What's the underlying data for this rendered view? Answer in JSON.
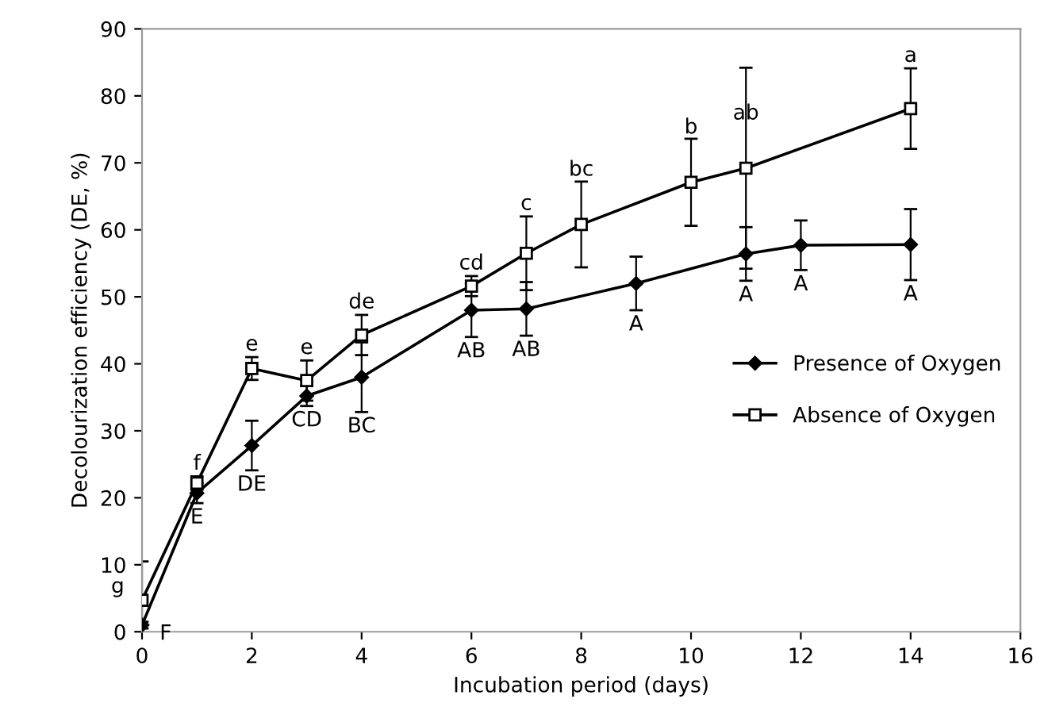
{
  "chart_data": {
    "type": "line",
    "xlabel": "Incubation period (days)",
    "ylabel": "Decolourization efficiency (DE, %)",
    "xlim": [
      0,
      16
    ],
    "xticks": [
      0,
      2,
      4,
      6,
      8,
      10,
      12,
      14,
      16
    ],
    "ylim": [
      0,
      90
    ],
    "yticks": [
      0,
      10,
      20,
      30,
      40,
      50,
      60,
      70,
      80,
      90
    ],
    "grid": false,
    "legend": "right",
    "line_style": "solid",
    "series": [
      {
        "name": "Presence of Oxygen",
        "color": "#000000",
        "marker": "diamond",
        "x": [
          0,
          1,
          2,
          3,
          4,
          6,
          7,
          9,
          11,
          12,
          14
        ],
        "values": [
          1,
          20.7,
          27.8,
          35.2,
          38,
          48,
          48.2,
          52,
          56.4,
          57.7,
          57.8
        ],
        "errors": [
          0.5,
          1.5,
          3.7,
          1.5,
          5.2,
          4,
          4,
          4,
          4,
          3.7,
          5.3
        ]
      },
      {
        "name": "Absence of Oxygen",
        "color": "#000000",
        "marker": "square",
        "x": [
          0,
          1,
          2,
          3,
          4,
          6,
          7,
          8,
          10,
          11,
          14
        ],
        "values": [
          4.7,
          22.2,
          39.3,
          37.5,
          44.3,
          51.6,
          56.5,
          60.8,
          67.1,
          69.2,
          78.1
        ],
        "errors": [
          5.8,
          1,
          1.7,
          3,
          3,
          1.5,
          5.5,
          6.4,
          6.5,
          15,
          6
        ]
      }
    ],
    "annotations": [
      {
        "text": "g",
        "x": 0,
        "y": 4.7
      },
      {
        "text": "F",
        "x": 0,
        "y": 1
      },
      {
        "text": "f",
        "x": 1,
        "y": 22.2
      },
      {
        "text": "E",
        "x": 1,
        "y": 20.7
      },
      {
        "text": "e",
        "x": 2,
        "y": 39.3
      },
      {
        "text": "DE",
        "x": 2,
        "y": 27.8
      },
      {
        "text": "e",
        "x": 3,
        "y": 37.5
      },
      {
        "text": "CD",
        "x": 3,
        "y": 35.2
      },
      {
        "text": "de",
        "x": 4,
        "y": 44.3
      },
      {
        "text": "BC",
        "x": 4,
        "y": 38
      },
      {
        "text": "cd",
        "x": 6,
        "y": 51.6
      },
      {
        "text": "AB",
        "x": 6,
        "y": 48
      },
      {
        "text": "c",
        "x": 7,
        "y": 56.5
      },
      {
        "text": "AB",
        "x": 7,
        "y": 48.2
      },
      {
        "text": "bc",
        "x": 8,
        "y": 60.8
      },
      {
        "text": "A",
        "x": 9,
        "y": 52
      },
      {
        "text": "b",
        "x": 10,
        "y": 67.1
      },
      {
        "text": "ab",
        "x": 11,
        "y": 69.2
      },
      {
        "text": "A",
        "x": 11,
        "y": 56.4
      },
      {
        "text": "A",
        "x": 12,
        "y": 57.7
      },
      {
        "text": "a",
        "x": 14,
        "y": 78.1
      },
      {
        "text": "A",
        "x": 14,
        "y": 57.8
      }
    ]
  }
}
